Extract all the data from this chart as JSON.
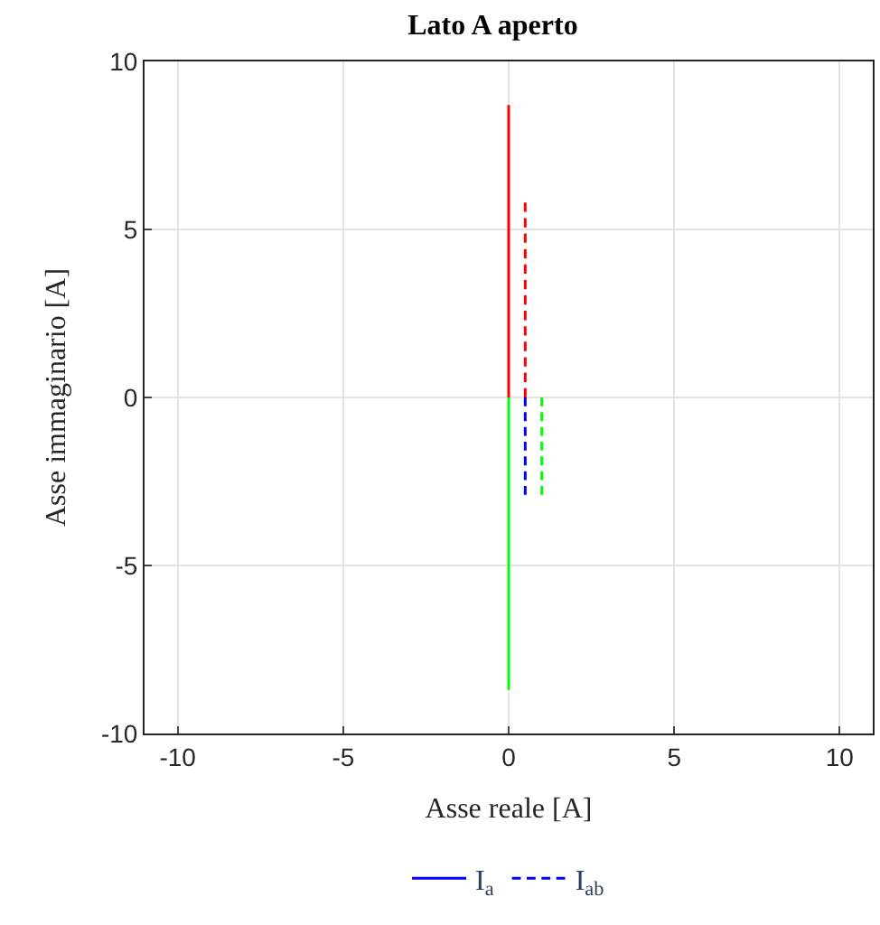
{
  "chart_data": {
    "type": "line",
    "title": "Lato A aperto",
    "xlabel": "Asse reale [A]",
    "ylabel": "Asse immaginario [A]",
    "series": [
      {
        "name": "I$_{a}$",
        "color": "#0000ff",
        "values": [
          null
        ],
        "line_style": "solid"
      },
      {
        "name": "I$_{ab}$",
        "color": "#0000ff",
        "x": [
          0.5,
          0.5
        ],
        "values": [
          0,
          -2.9
        ],
        "line_style": "dashed"
      },
      {
        "color": "#ff0000",
        "x": [
          0,
          0
        ],
        "values": [
          0,
          8.7
        ],
        "line_style": "solid"
      },
      {
        "color": "#00ff00",
        "x": [
          0,
          0
        ],
        "values": [
          0,
          -8.7
        ],
        "line_style": "solid"
      },
      {
        "color": "#ff0000",
        "x": [
          0.5,
          0.5
        ],
        "values": [
          0,
          5.8
        ],
        "line_style": "dashed"
      },
      {
        "color": "#00ff00",
        "x": [
          1,
          1
        ],
        "values": [
          0,
          -2.9
        ],
        "line_style": "dashed"
      }
    ],
    "xlim": [
      -11,
      11
    ],
    "ylim": [
      -10,
      10
    ],
    "xticks": [
      -10,
      -5,
      0,
      5,
      10
    ],
    "yticks": [
      -10,
      -5,
      0,
      5,
      10
    ],
    "grid": true,
    "legend": "bottom",
    "marker": "none"
  }
}
